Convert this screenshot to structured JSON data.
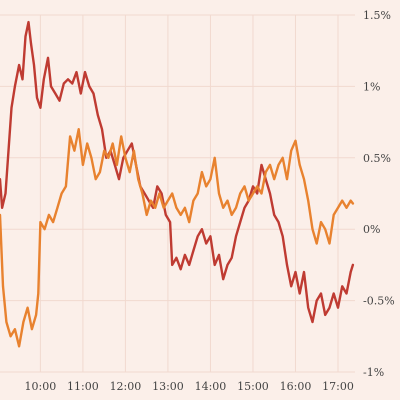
{
  "chart_data": {
    "type": "line",
    "title": "",
    "xlabel": "",
    "ylabel": "",
    "x_range": [
      9.05,
      17.4
    ],
    "ylim": [
      -1.0,
      1.5
    ],
    "grid": true,
    "legend": "none",
    "x_ticks": [
      {
        "value": 10,
        "label": "10:00"
      },
      {
        "value": 11,
        "label": "11:00"
      },
      {
        "value": 12,
        "label": "12:00"
      },
      {
        "value": 13,
        "label": "13:00"
      },
      {
        "value": 14,
        "label": "14:00"
      },
      {
        "value": 15,
        "label": "15:00"
      },
      {
        "value": 16,
        "label": "16:00"
      },
      {
        "value": 17,
        "label": "17:00"
      }
    ],
    "y_ticks": [
      {
        "value": 1.5,
        "label": "1.5%"
      },
      {
        "value": 1.0,
        "label": "1%"
      },
      {
        "value": 0.5,
        "label": "0.5%"
      },
      {
        "value": 0.0,
        "label": "0%"
      },
      {
        "value": -0.5,
        "label": "-0.5%"
      },
      {
        "value": -1.0,
        "label": "-1%"
      }
    ],
    "series": [
      {
        "color": "#bf3b32",
        "points": [
          [
            9.05,
            0.35
          ],
          [
            9.1,
            0.15
          ],
          [
            9.18,
            0.25
          ],
          [
            9.25,
            0.55
          ],
          [
            9.32,
            0.85
          ],
          [
            9.4,
            1.0
          ],
          [
            9.5,
            1.15
          ],
          [
            9.58,
            1.05
          ],
          [
            9.65,
            1.35
          ],
          [
            9.72,
            1.45
          ],
          [
            9.78,
            1.3
          ],
          [
            9.85,
            1.15
          ],
          [
            9.92,
            0.92
          ],
          [
            10.0,
            0.85
          ],
          [
            10.08,
            1.05
          ],
          [
            10.18,
            1.2
          ],
          [
            10.25,
            1.0
          ],
          [
            10.35,
            0.95
          ],
          [
            10.45,
            0.9
          ],
          [
            10.55,
            1.02
          ],
          [
            10.65,
            1.05
          ],
          [
            10.75,
            1.02
          ],
          [
            10.85,
            1.1
          ],
          [
            10.95,
            0.95
          ],
          [
            11.05,
            1.1
          ],
          [
            11.15,
            1.0
          ],
          [
            11.25,
            0.95
          ],
          [
            11.35,
            0.8
          ],
          [
            11.45,
            0.7
          ],
          [
            11.55,
            0.5
          ],
          [
            11.65,
            0.55
          ],
          [
            11.75,
            0.45
          ],
          [
            11.85,
            0.35
          ],
          [
            11.95,
            0.5
          ],
          [
            12.05,
            0.55
          ],
          [
            12.15,
            0.6
          ],
          [
            12.25,
            0.45
          ],
          [
            12.35,
            0.3
          ],
          [
            12.45,
            0.25
          ],
          [
            12.55,
            0.2
          ],
          [
            12.65,
            0.15
          ],
          [
            12.75,
            0.3
          ],
          [
            12.85,
            0.25
          ],
          [
            12.95,
            0.1
          ],
          [
            13.05,
            0.05
          ],
          [
            13.1,
            -0.25
          ],
          [
            13.2,
            -0.2
          ],
          [
            13.3,
            -0.28
          ],
          [
            13.4,
            -0.18
          ],
          [
            13.5,
            -0.25
          ],
          [
            13.6,
            -0.15
          ],
          [
            13.7,
            -0.05
          ],
          [
            13.8,
            0.0
          ],
          [
            13.9,
            -0.1
          ],
          [
            14.0,
            -0.05
          ],
          [
            14.1,
            -0.25
          ],
          [
            14.2,
            -0.18
          ],
          [
            14.3,
            -0.35
          ],
          [
            14.4,
            -0.25
          ],
          [
            14.5,
            -0.2
          ],
          [
            14.6,
            -0.05
          ],
          [
            14.7,
            0.05
          ],
          [
            14.8,
            0.15
          ],
          [
            14.9,
            0.2
          ],
          [
            15.0,
            0.3
          ],
          [
            15.1,
            0.25
          ],
          [
            15.2,
            0.45
          ],
          [
            15.3,
            0.35
          ],
          [
            15.4,
            0.25
          ],
          [
            15.5,
            0.1
          ],
          [
            15.6,
            0.05
          ],
          [
            15.7,
            -0.05
          ],
          [
            15.8,
            -0.25
          ],
          [
            15.9,
            -0.4
          ],
          [
            16.0,
            -0.3
          ],
          [
            16.1,
            -0.45
          ],
          [
            16.2,
            -0.3
          ],
          [
            16.3,
            -0.55
          ],
          [
            16.4,
            -0.65
          ],
          [
            16.5,
            -0.5
          ],
          [
            16.6,
            -0.45
          ],
          [
            16.7,
            -0.6
          ],
          [
            16.8,
            -0.55
          ],
          [
            16.9,
            -0.45
          ],
          [
            17.0,
            -0.55
          ],
          [
            17.1,
            -0.4
          ],
          [
            17.2,
            -0.45
          ],
          [
            17.3,
            -0.3
          ],
          [
            17.35,
            -0.25
          ]
        ]
      },
      {
        "color": "#e8822f",
        "points": [
          [
            9.05,
            0.1
          ],
          [
            9.12,
            -0.4
          ],
          [
            9.2,
            -0.65
          ],
          [
            9.3,
            -0.75
          ],
          [
            9.4,
            -0.7
          ],
          [
            9.5,
            -0.82
          ],
          [
            9.6,
            -0.65
          ],
          [
            9.7,
            -0.55
          ],
          [
            9.8,
            -0.7
          ],
          [
            9.9,
            -0.6
          ],
          [
            9.95,
            -0.45
          ],
          [
            10.0,
            0.05
          ],
          [
            10.1,
            0.0
          ],
          [
            10.2,
            0.1
          ],
          [
            10.3,
            0.05
          ],
          [
            10.4,
            0.15
          ],
          [
            10.5,
            0.25
          ],
          [
            10.6,
            0.3
          ],
          [
            10.7,
            0.65
          ],
          [
            10.8,
            0.55
          ],
          [
            10.9,
            0.7
          ],
          [
            11.0,
            0.45
          ],
          [
            11.1,
            0.6
          ],
          [
            11.2,
            0.5
          ],
          [
            11.3,
            0.35
          ],
          [
            11.4,
            0.4
          ],
          [
            11.5,
            0.55
          ],
          [
            11.6,
            0.5
          ],
          [
            11.7,
            0.6
          ],
          [
            11.8,
            0.45
          ],
          [
            11.9,
            0.65
          ],
          [
            12.0,
            0.5
          ],
          [
            12.1,
            0.4
          ],
          [
            12.2,
            0.55
          ],
          [
            12.3,
            0.35
          ],
          [
            12.4,
            0.25
          ],
          [
            12.5,
            0.1
          ],
          [
            12.6,
            0.2
          ],
          [
            12.7,
            0.15
          ],
          [
            12.8,
            0.25
          ],
          [
            12.9,
            0.15
          ],
          [
            13.0,
            0.2
          ],
          [
            13.1,
            0.25
          ],
          [
            13.2,
            0.15
          ],
          [
            13.3,
            0.1
          ],
          [
            13.4,
            0.15
          ],
          [
            13.5,
            0.05
          ],
          [
            13.6,
            0.2
          ],
          [
            13.7,
            0.25
          ],
          [
            13.8,
            0.4
          ],
          [
            13.9,
            0.3
          ],
          [
            14.0,
            0.35
          ],
          [
            14.1,
            0.5
          ],
          [
            14.2,
            0.25
          ],
          [
            14.3,
            0.15
          ],
          [
            14.4,
            0.2
          ],
          [
            14.5,
            0.1
          ],
          [
            14.6,
            0.15
          ],
          [
            14.7,
            0.25
          ],
          [
            14.8,
            0.3
          ],
          [
            14.9,
            0.2
          ],
          [
            15.0,
            0.25
          ],
          [
            15.1,
            0.3
          ],
          [
            15.2,
            0.25
          ],
          [
            15.3,
            0.4
          ],
          [
            15.4,
            0.45
          ],
          [
            15.5,
            0.35
          ],
          [
            15.6,
            0.45
          ],
          [
            15.7,
            0.5
          ],
          [
            15.8,
            0.35
          ],
          [
            15.9,
            0.55
          ],
          [
            16.0,
            0.62
          ],
          [
            16.1,
            0.45
          ],
          [
            16.2,
            0.35
          ],
          [
            16.3,
            0.2
          ],
          [
            16.4,
            0.0
          ],
          [
            16.5,
            -0.1
          ],
          [
            16.6,
            0.05
          ],
          [
            16.7,
            0.0
          ],
          [
            16.8,
            -0.1
          ],
          [
            16.9,
            0.1
          ],
          [
            17.0,
            0.15
          ],
          [
            17.1,
            0.2
          ],
          [
            17.2,
            0.15
          ],
          [
            17.3,
            0.2
          ],
          [
            17.35,
            0.18
          ]
        ]
      }
    ]
  }
}
